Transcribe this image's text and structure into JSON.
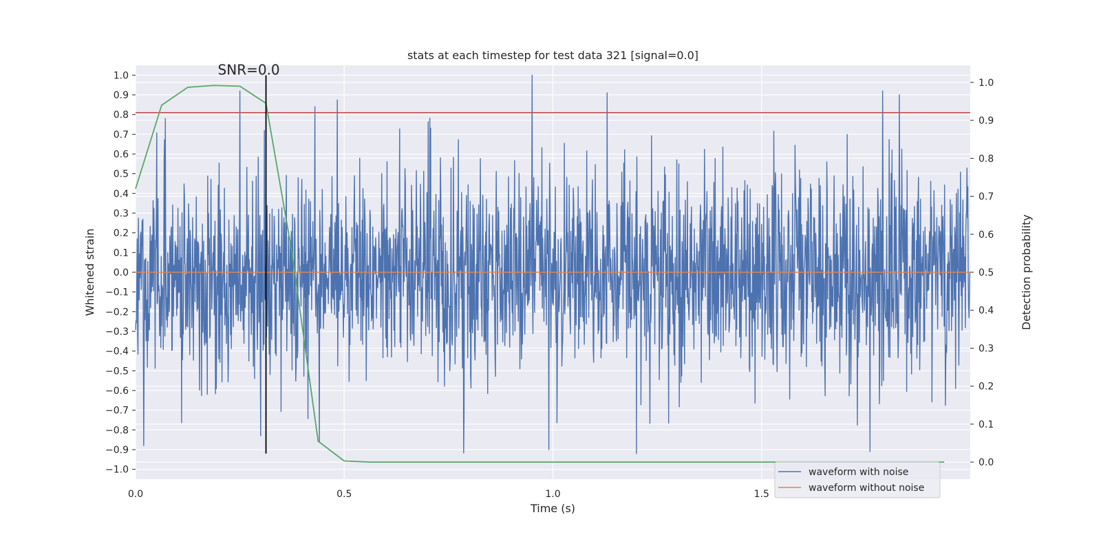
{
  "chart_data": {
    "type": "line",
    "title": "stats at each timestep for test data 321 [signal=0.0]",
    "xlabel": "Time (s)",
    "ylabel": "Whitened strain",
    "y2label": "Detection probability",
    "xlim": [
      0.0,
      2.0
    ],
    "ylim": [
      -1.05,
      1.05
    ],
    "y2lim": [
      -0.045,
      1.045
    ],
    "x_ticks": [
      0.0,
      0.5,
      1.0,
      1.5
    ],
    "x_tick_labels": [
      "0.0",
      "0.5",
      "1.0",
      "1.5"
    ],
    "y_ticks": [
      -1.0,
      -0.9,
      -0.8,
      -0.7,
      -0.6,
      -0.5,
      -0.4,
      -0.3,
      -0.2,
      -0.1,
      0.0,
      0.1,
      0.2,
      0.3,
      0.4,
      0.5,
      0.6,
      0.7,
      0.8,
      0.9,
      1.0
    ],
    "y_tick_labels": [
      "−1.0",
      "−0.9",
      "−0.8",
      "−0.7",
      "−0.6",
      "−0.5",
      "−0.4",
      "−0.3",
      "−0.2",
      "−0.1",
      "0.0",
      "0.1",
      "0.2",
      "0.3",
      "0.4",
      "0.5",
      "0.6",
      "0.7",
      "0.8",
      "0.9",
      "1.0"
    ],
    "y2_ticks": [
      0.0,
      0.1,
      0.2,
      0.3,
      0.4,
      0.5,
      0.6,
      0.7,
      0.8,
      0.9,
      1.0
    ],
    "y2_tick_labels": [
      "0.0",
      "0.1",
      "0.2",
      "0.3",
      "0.4",
      "0.5",
      "0.6",
      "0.7",
      "0.8",
      "0.9",
      "1.0"
    ],
    "grid": true,
    "legend_position": "lower-right",
    "series": [
      {
        "name": "waveform with noise",
        "color": "#4c72b0",
        "axis": "left",
        "x_range": [
          0.0,
          2.0
        ],
        "num_points": 2048,
        "approx_std": 0.26,
        "approx_range": [
          -0.93,
          1.0
        ],
        "notable_peaks": [
          [
            0.25,
            0.92
          ],
          [
            0.43,
            0.84
          ],
          [
            0.95,
            1.0
          ],
          [
            1.13,
            0.91
          ],
          [
            1.79,
            0.92
          ],
          [
            1.83,
            0.9
          ]
        ],
        "notable_troughs": [
          [
            0.02,
            -0.88
          ],
          [
            0.3,
            -0.83
          ],
          [
            0.44,
            -0.86
          ],
          [
            0.99,
            -0.9
          ],
          [
            1.2,
            -0.92
          ],
          [
            1.76,
            -0.91
          ]
        ]
      },
      {
        "name": "waveform without noise",
        "color": "#dd8452",
        "axis": "left",
        "x": [
          0.0,
          2.0
        ],
        "y": [
          0.0,
          0.0
        ]
      },
      {
        "name": "",
        "color": "#55a868",
        "axis": "right",
        "x": [
          0.0,
          0.0625,
          0.125,
          0.1875,
          0.25,
          0.3125,
          0.375,
          0.4375,
          0.5,
          0.5625,
          0.625,
          0.6875,
          0.75,
          0.8125,
          0.875,
          0.9375,
          1.0,
          1.0625,
          1.125,
          1.1875,
          1.25,
          1.3125,
          1.375,
          1.4375,
          1.5,
          1.5625,
          1.625,
          1.6875,
          1.75,
          1.8125,
          1.875,
          1.9375
        ],
        "y": [
          0.72,
          0.94,
          0.987,
          0.992,
          0.99,
          0.945,
          0.55,
          0.055,
          0.003,
          0.0,
          0.0,
          0.0,
          0.0,
          0.0,
          0.0,
          0.0,
          0.0,
          0.0,
          0.0,
          0.0,
          0.0,
          0.0,
          0.0,
          0.0,
          0.0,
          0.0,
          0.0,
          0.0,
          0.0,
          0.0,
          0.0,
          0.0
        ]
      }
    ],
    "threshold_line": {
      "axis": "left",
      "y": 0.81,
      "color": "#c44e52"
    },
    "snr_marker": {
      "x": 0.3125,
      "y_range": [
        -0.92,
        1.0
      ],
      "color": "#000000",
      "label": "SNR=0.0"
    }
  },
  "legend": [
    {
      "label": "waveform with noise",
      "color": "#4c72b0"
    },
    {
      "label": "waveform without noise",
      "color": "#dd8452"
    }
  ]
}
